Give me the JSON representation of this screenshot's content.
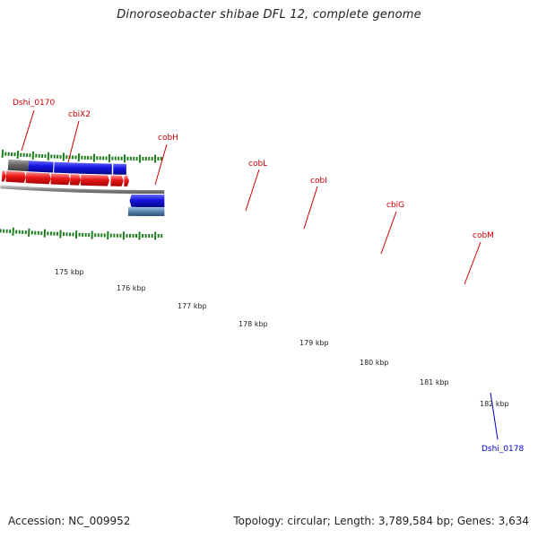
{
  "title": "Dinoroseobacter shibae DFL 12, complete genome",
  "footer": {
    "accession": "Accession: NC_009952",
    "summary": "Topology: circular; Length: 3,789,584 bp; Genes: 3,634"
  },
  "colors": {
    "forward_gene": "#1a1adc",
    "reverse_gene": "#e01616",
    "forward_pseudo": "#646464",
    "forward_rna": "#5a87b4",
    "backbone": "#8a8a8a",
    "tick": "#1e7e1e",
    "label_red": "#cc0000",
    "label_blue": "#0000cc"
  },
  "gene_labels": [
    {
      "text": "Dshi_0170",
      "color": "red"
    },
    {
      "text": "cbiX2",
      "color": "red"
    },
    {
      "text": "cobH",
      "color": "red"
    },
    {
      "text": "cobL",
      "color": "red"
    },
    {
      "text": "cobI",
      "color": "red"
    },
    {
      "text": "cbiG",
      "color": "red"
    },
    {
      "text": "cobM",
      "color": "red"
    },
    {
      "text": "Dshi_0178",
      "color": "blue"
    }
  ],
  "ruler_labels": [
    "175 kbp",
    "176 kbp",
    "177 kbp",
    "178 kbp",
    "179 kbp",
    "180 kbp",
    "181 kbp",
    "182 kbp"
  ]
}
